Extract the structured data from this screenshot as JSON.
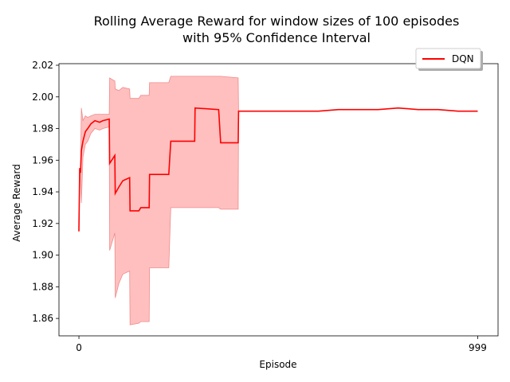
{
  "chart_data": {
    "type": "line",
    "title": "Rolling Average Reward for window sizes of 100 episodes",
    "subtitle": "with 95% Confidence Interval",
    "xlabel": "Episode",
    "ylabel": "Average Reward",
    "xlim": [
      -50,
      1050
    ],
    "ylim": [
      1.849,
      2.021
    ],
    "xticks": [
      0,
      999
    ],
    "yticks": [
      1.86,
      1.88,
      1.9,
      1.92,
      1.94,
      1.96,
      1.98,
      2.0,
      2.02
    ],
    "ytick_labels": [
      "1.86",
      "1.88",
      "1.90",
      "1.92",
      "1.94",
      "1.96",
      "1.98",
      "2.00",
      "2.02"
    ],
    "grid": false,
    "legend_position": "top-right",
    "colors": {
      "line": "#ff0000",
      "band": "#ffbfbf",
      "band_edge": "#f08a8a"
    },
    "series": [
      {
        "name": "DQN",
        "x": [
          0,
          2,
          4,
          6,
          10,
          16,
          22,
          30,
          40,
          52,
          60,
          76,
          77,
          90,
          91,
          100,
          110,
          127,
          128,
          150,
          155,
          176,
          177,
          225,
          230,
          290,
          291,
          350,
          355,
          399,
          400,
          410,
          450,
          500,
          550,
          600,
          650,
          700,
          750,
          800,
          850,
          900,
          950,
          999
        ],
        "y": [
          1.915,
          1.955,
          1.952,
          1.966,
          1.972,
          1.978,
          1.98,
          1.983,
          1.985,
          1.984,
          1.985,
          1.986,
          1.958,
          1.963,
          1.939,
          1.943,
          1.947,
          1.949,
          1.928,
          1.928,
          1.93,
          1.93,
          1.951,
          1.951,
          1.972,
          1.972,
          1.993,
          1.992,
          1.971,
          1.971,
          1.991,
          1.991,
          1.991,
          1.991,
          1.991,
          1.991,
          1.992,
          1.992,
          1.992,
          1.993,
          1.992,
          1.992,
          1.991,
          1.991
        ],
        "ci_upper": [
          1.915,
          1.955,
          1.952,
          1.993,
          1.985,
          1.988,
          1.987,
          1.988,
          1.989,
          1.989,
          1.989,
          1.989,
          2.012,
          2.01,
          2.005,
          2.004,
          2.006,
          2.005,
          1.999,
          1.999,
          2.001,
          2.001,
          2.009,
          2.009,
          2.013,
          2.013,
          2.013,
          2.013,
          2.013,
          2.012,
          1.991,
          1.991,
          1.991,
          1.991,
          1.991,
          1.991,
          1.992,
          1.992,
          1.992,
          1.993,
          1.992,
          1.992,
          1.991,
          1.991
        ],
        "ci_lower": [
          1.915,
          1.955,
          1.952,
          1.933,
          1.962,
          1.97,
          1.972,
          1.977,
          1.98,
          1.979,
          1.98,
          1.981,
          1.903,
          1.914,
          1.873,
          1.882,
          1.888,
          1.89,
          1.856,
          1.857,
          1.858,
          1.858,
          1.892,
          1.892,
          1.93,
          1.93,
          1.93,
          1.93,
          1.929,
          1.929,
          1.991,
          1.991,
          1.991,
          1.991,
          1.991,
          1.991,
          1.992,
          1.992,
          1.992,
          1.993,
          1.992,
          1.992,
          1.991,
          1.991
        ]
      }
    ]
  }
}
